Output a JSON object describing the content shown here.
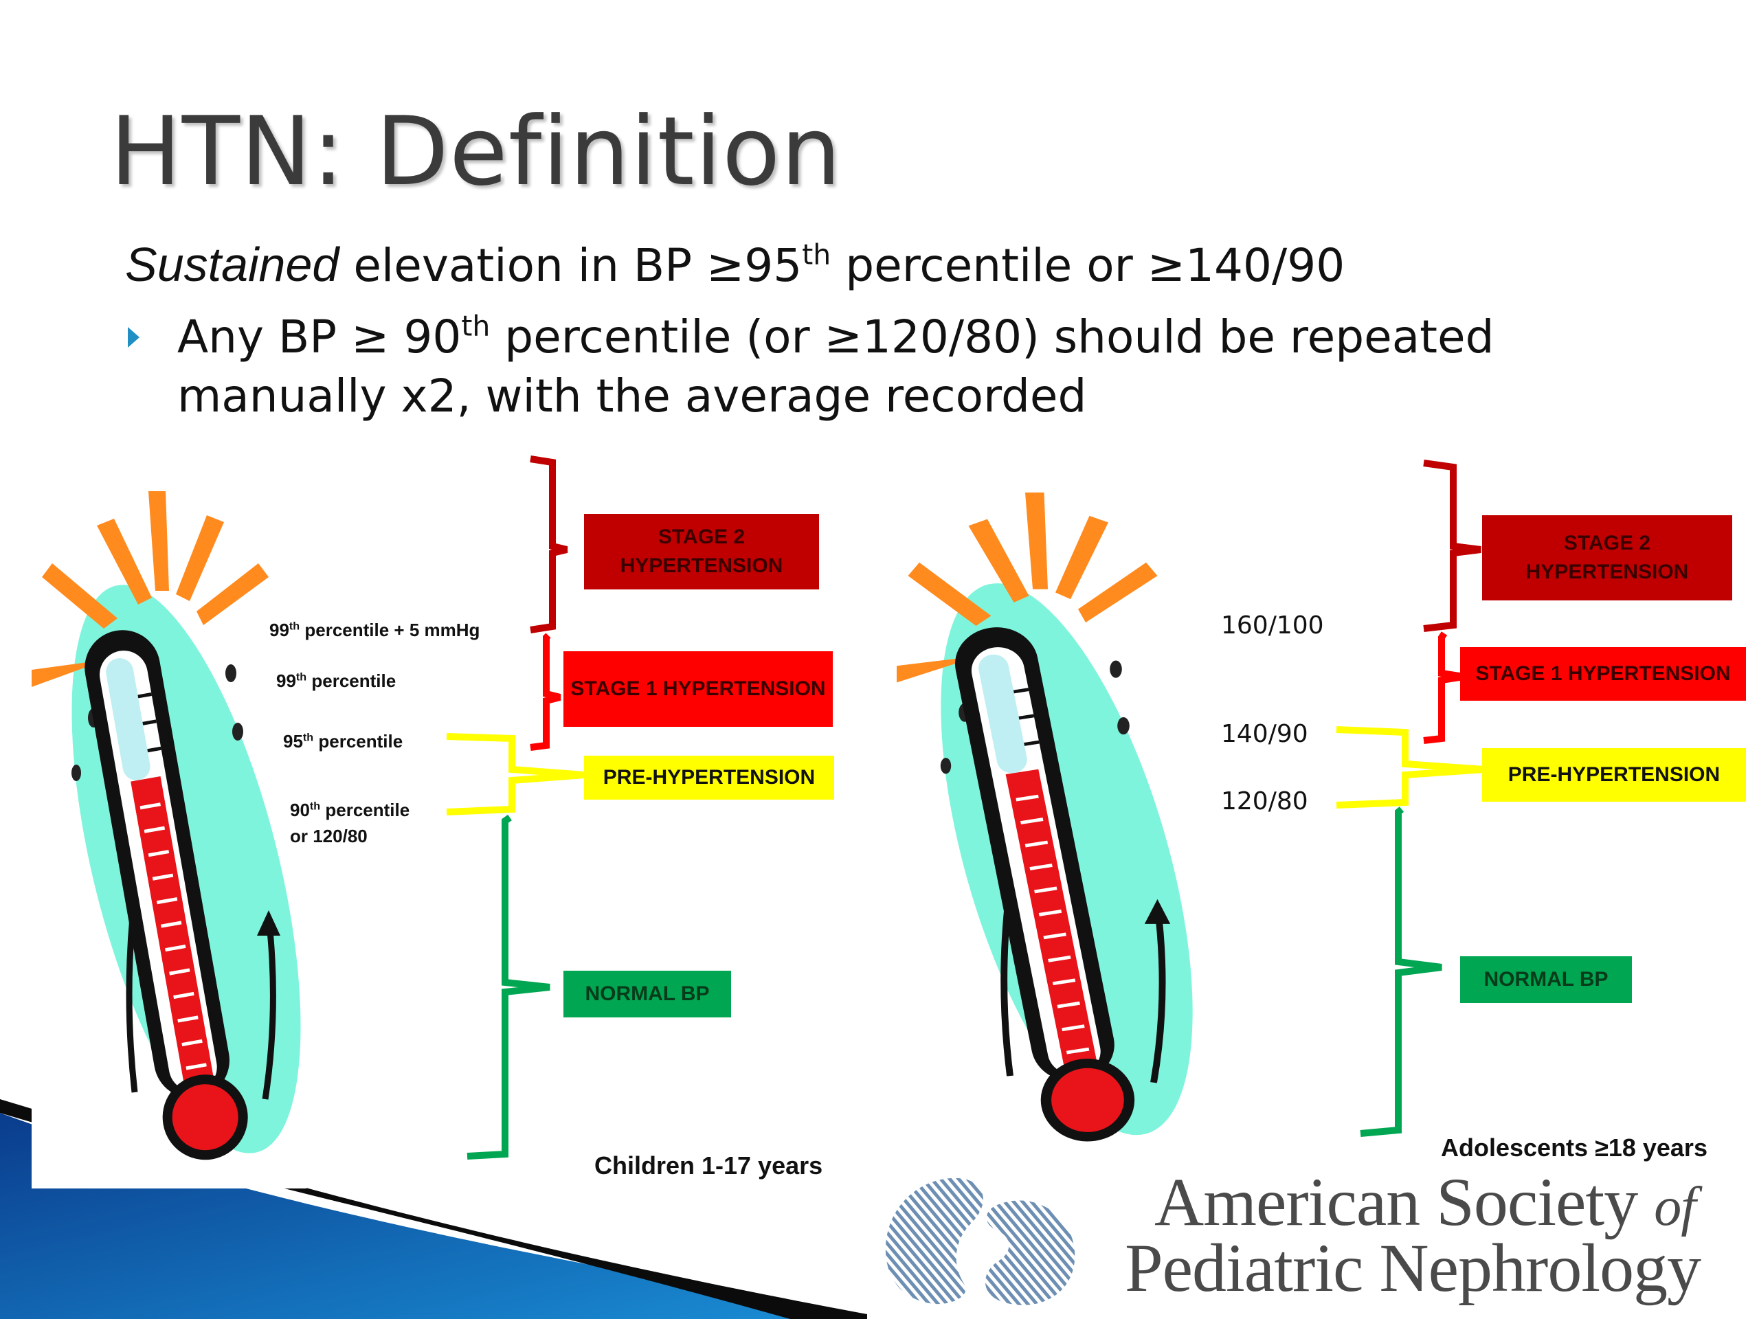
{
  "slide": {
    "title": "HTN: Definition",
    "line1_emphasis": "Sustained",
    "line1_pre": " elevation in BP ≥95",
    "line1_sup": "th",
    "line1_post": " percentile or ≥140/90",
    "bullet_pre": "Any BP ≥ 90",
    "bullet_sup": "th",
    "bullet_post": " percentile (or ≥120/80) should be repeated manually x2, with the average recorded"
  },
  "children_panel": {
    "boxes": {
      "stage2": "STAGE 2 HYPERTENSION",
      "stage1": "STAGE 1 HYPERTENSION",
      "prehtn": "PRE-HYPERTENSION",
      "normal": "NORMAL BP"
    },
    "thresholds": [
      {
        "num": "99",
        "sup": "th",
        "text": " percentile + 5 mmHg"
      },
      {
        "num": "99",
        "sup": "th",
        "text": " percentile"
      },
      {
        "num": "95",
        "sup": "th",
        "text": " percentile"
      },
      {
        "num": "90",
        "sup": "th",
        "text": " percentile",
        "line2": "or 120/80"
      }
    ],
    "caption": "Children 1-17 years"
  },
  "adolescent_panel": {
    "boxes": {
      "stage2": "STAGE 2 HYPERTENSION",
      "stage1": "STAGE 1 HYPERTENSION",
      "prehtn": "PRE-HYPERTENSION",
      "normal": "NORMAL BP"
    },
    "thresholds": [
      "160/100",
      "140/90",
      "120/80"
    ],
    "caption": "Adolescents ≥18 years"
  },
  "logo": {
    "line1": "American Society",
    "line1_of": "of",
    "line2": "Pediatric Nephrology"
  },
  "colors": {
    "stage2": "#c00000",
    "stage1": "#ff0000",
    "prehtn": "#ffff00",
    "normal": "#00a651",
    "bullet": "#1f8fc4",
    "title": "#3b3b3b",
    "thermo_bg": "#7ff4dc",
    "rays": "#ff8a1e",
    "logo": "#4a4a4a",
    "logo_mark": "#6d8fb3"
  },
  "icons": [
    "thermometer-icon",
    "bullet-arrow-icon",
    "asp-logo-mark"
  ]
}
